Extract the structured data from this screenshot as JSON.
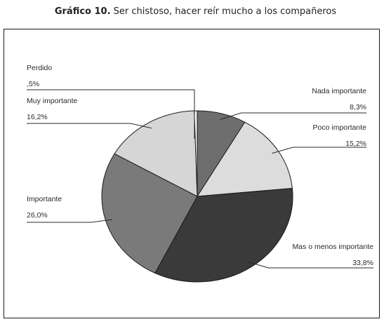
{
  "caption": {
    "number": "Gráfico 10.",
    "text": "Ser chistoso, hacer reír mucho a los compañeros"
  },
  "chart_data": {
    "type": "pie",
    "slices": [
      {
        "label": "Nada importante",
        "value": 8.3,
        "display": "8,3%",
        "color": "#6e6e6e"
      },
      {
        "label": "Poco importante",
        "value": 15.2,
        "display": "15,2%",
        "color": "#dcdcdc"
      },
      {
        "label": "Mas o menos importante",
        "value": 33.8,
        "display": "33,8%",
        "color": "#3a3a3a"
      },
      {
        "label": "Importante",
        "value": 26.0,
        "display": "26,0%",
        "color": "#7a7a7a"
      },
      {
        "label": "Muy importante",
        "value": 16.2,
        "display": "16,2%",
        "color": "#d6d6d6"
      },
      {
        "label": "Perdido",
        "value": 0.5,
        "display": ",5%",
        "color": "#f4f4f4"
      }
    ],
    "start": "12 o'clock",
    "direction": "clockwise",
    "legend": "none — each slice labelled with a leader line"
  }
}
